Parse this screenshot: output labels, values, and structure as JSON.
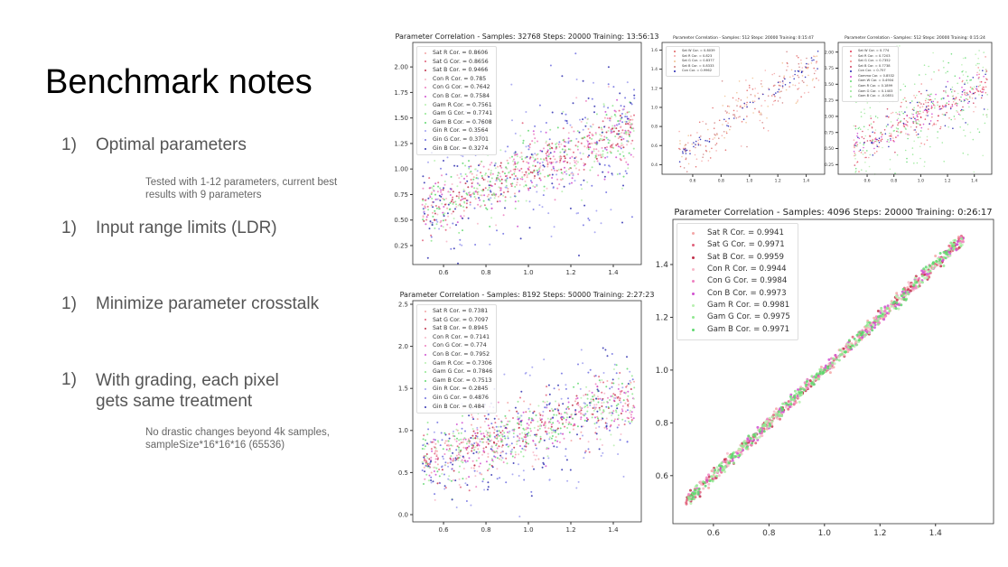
{
  "slide": {
    "title": "Benchmark notes",
    "items": [
      {
        "num": "1)",
        "text": "Optimal parameters",
        "note": "Tested with 1-12 parameters, current best results with 9 parameters"
      },
      {
        "num": "1)",
        "text": "Input range limits (LDR)",
        "note": ""
      },
      {
        "num": "1)",
        "text": "Minimize parameter crosstalk",
        "note": ""
      },
      {
        "num": "1)",
        "text": "With grading, each pixel gets same treatment",
        "note": "No drastic changes beyond 4k samples, sampleSize*16*16*16 (65536)"
      }
    ]
  },
  "chart_data": [
    {
      "type": "scatter",
      "title": "Parameter Correlation - Samples: 32768 Steps: 20000 Training: 13:56:13",
      "xlim": [
        0.455,
        1.532
      ],
      "ylim": [
        0.064,
        2.24
      ],
      "xticks": [
        "0.6",
        "0.8",
        "1.0",
        "1.2",
        "1.4"
      ],
      "yticks": [
        "0.25",
        "0.50",
        "0.75",
        "1.00",
        "1.25",
        "1.50",
        "1.75",
        "2.00"
      ],
      "legend": "top-left",
      "grid": false,
      "series": [
        {
          "name": "Sat R Cor. = 0.8606",
          "color": "#f4a6a6"
        },
        {
          "name": "Sat G Cor. = 0.8656",
          "color": "#e0607a"
        },
        {
          "name": "Sat B Cor. = 0.9466",
          "color": "#c0304a"
        },
        {
          "name": "Con R Cor. = 0.785",
          "color": "#f7b8c8"
        },
        {
          "name": "Con G Cor. = 0.7642",
          "color": "#ee80c0"
        },
        {
          "name": "Con B Cor. = 0.7584",
          "color": "#d050d0"
        },
        {
          "name": "Gam R Cor. = 0.7561",
          "color": "#b8f0b0"
        },
        {
          "name": "Gam G Cor. = 0.7741",
          "color": "#90e890"
        },
        {
          "name": "Gam B Cor. = 0.7608",
          "color": "#60d870"
        },
        {
          "name": "Gin R Cor. = 0.3564",
          "color": "#a0a0f0"
        },
        {
          "name": "Gin G Cor. = 0.3701",
          "color": "#7070e0"
        },
        {
          "name": "Gin B Cor. = 0.3274",
          "color": "#3030b0"
        }
      ]
    },
    {
      "type": "scatter",
      "title": "Parameter Correlation - Samples: 8192 Steps: 50000 Training: 2:27:23",
      "xlim": [
        0.455,
        1.532
      ],
      "ylim": [
        -0.086,
        2.543
      ],
      "xticks": [
        "0.6",
        "0.8",
        "1.0",
        "1.2",
        "1.4"
      ],
      "yticks": [
        "0.0",
        "0.5",
        "1.0",
        "1.5",
        "2.0",
        "2.5"
      ],
      "legend": "top-left",
      "grid": false,
      "series": [
        {
          "name": "Sat R Cor. = 0.7381",
          "color": "#f4a6a6"
        },
        {
          "name": "Sat G Cor. = 0.7097",
          "color": "#e0607a"
        },
        {
          "name": "Sat B Cor. = 0.8945",
          "color": "#c0304a"
        },
        {
          "name": "Con R Cor. = 0.7141",
          "color": "#f7b8c8"
        },
        {
          "name": "Con G Cor. = 0.774",
          "color": "#ee80c0"
        },
        {
          "name": "Con B Cor. = 0.7952",
          "color": "#d050d0"
        },
        {
          "name": "Gam R Cor. = 0.7306",
          "color": "#b8f0b0"
        },
        {
          "name": "Gam G Cor. = 0.7846",
          "color": "#90e890"
        },
        {
          "name": "Gam B Cor. = 0.7513",
          "color": "#60d870"
        },
        {
          "name": "Gin R Cor. = 0.2845",
          "color": "#a0a0f0"
        },
        {
          "name": "Gin G Cor. = 0.4876",
          "color": "#7070e0"
        },
        {
          "name": "Gin B Cor. = 0.484",
          "color": "#3030b0"
        }
      ]
    },
    {
      "type": "scatter",
      "title": "Parameter Correlation - Samples: 512 Steps: 20000 Training: 0:15:47",
      "xlim": [
        0.384,
        1.53
      ],
      "ylim": [
        0.3,
        1.68
      ],
      "xticks": [
        "0.6",
        "0.8",
        "1.0",
        "1.2",
        "1.4"
      ],
      "yticks": [
        "0.4",
        "0.6",
        "0.8",
        "1.0",
        "1.2",
        "1.4",
        "1.6"
      ],
      "legend": "top-left",
      "grid": false,
      "series": [
        {
          "name": "Sat W Cor. = 0.8039",
          "color": "#e06060"
        },
        {
          "name": "Sat R Cor. = 0.823",
          "color": "#f4a6a6"
        },
        {
          "name": "Sat G Cor. = 0.8377",
          "color": "#f0c090"
        },
        {
          "name": "Sat B Cor. = 0.8333",
          "color": "#d08080"
        },
        {
          "name": "Con Cor. = 0.9962",
          "color": "#2020b0"
        }
      ]
    },
    {
      "type": "scatter",
      "title": "Parameter Correlation - Samples: 512 Steps: 20000 Training: 0:15:24",
      "xlim": [
        0.384,
        1.53
      ],
      "ylim": [
        0.1,
        2.15
      ],
      "xticks": [
        "0.6",
        "0.8",
        "1.0",
        "1.2",
        "1.4"
      ],
      "yticks": [
        "0.25",
        "0.50",
        "0.75",
        "1.00",
        "1.25",
        "1.50",
        "1.75",
        "2.00"
      ],
      "legend": "top-left",
      "grid": false,
      "series": [
        {
          "name": "Sat W Cor. = 0.774",
          "color": "#e03050"
        },
        {
          "name": "Sat R Cor. = 0.7203",
          "color": "#f4a6a6"
        },
        {
          "name": "Sat G Cor. = 0.7352",
          "color": "#f08080"
        },
        {
          "name": "Sat B Cor. = 0.7738",
          "color": "#d04060"
        },
        {
          "name": "Con Cor. = 0.757",
          "color": "#2020b0"
        },
        {
          "name": "Gamma Cor. = 0.8532",
          "color": "#d040d0"
        },
        {
          "name": "Gam W Cor. = 0.4904",
          "color": "#60d870"
        },
        {
          "name": "Gam R Cor. = 0.1899",
          "color": "#b8f0b0"
        },
        {
          "name": "Gam G Cor. = 0.1403",
          "color": "#90e890"
        },
        {
          "name": "Gam B Cor. = -0.0851",
          "color": "#a0e8a0"
        }
      ]
    },
    {
      "type": "scatter",
      "title": "Parameter Correlation - Samples: 4096 Steps: 20000 Training: 0:26:17",
      "xlim": [
        0.454,
        1.609
      ],
      "ylim": [
        0.418,
        1.571
      ],
      "xticks": [
        "0.6",
        "0.8",
        "1.0",
        "1.2",
        "1.4"
      ],
      "yticks": [
        "0.6",
        "0.8",
        "1.0",
        "1.2",
        "1.4"
      ],
      "legend": "top-left",
      "grid": false,
      "series": [
        {
          "name": "Sat R Cor. = 0.9941",
          "color": "#f4a6a6"
        },
        {
          "name": "Sat G Cor. = 0.9971",
          "color": "#e0607a"
        },
        {
          "name": "Sat B Cor. = 0.9959",
          "color": "#c0304a"
        },
        {
          "name": "Con R Cor. = 0.9944",
          "color": "#f7b8c8"
        },
        {
          "name": "Con G Cor. = 0.9984",
          "color": "#ee80c0"
        },
        {
          "name": "Con B Cor. = 0.9973",
          "color": "#d050d0"
        },
        {
          "name": "Gam R Cor. = 0.9981",
          "color": "#b8f0b0"
        },
        {
          "name": "Gam G Cor. = 0.9975",
          "color": "#90e890"
        },
        {
          "name": "Gam B Cor. = 0.9971",
          "color": "#60d870"
        }
      ]
    }
  ]
}
